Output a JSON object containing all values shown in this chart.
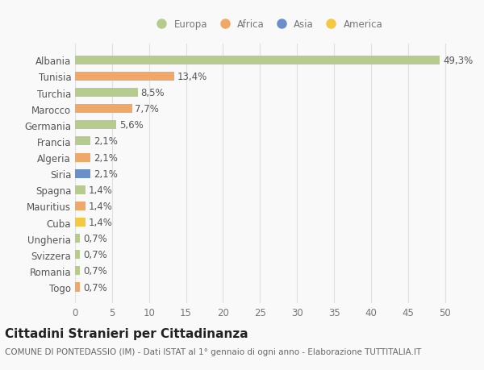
{
  "countries": [
    "Albania",
    "Tunisia",
    "Turchia",
    "Marocco",
    "Germania",
    "Francia",
    "Algeria",
    "Siria",
    "Spagna",
    "Mauritius",
    "Cuba",
    "Ungheria",
    "Svizzera",
    "Romania",
    "Togo"
  ],
  "values": [
    49.3,
    13.4,
    8.5,
    7.7,
    5.6,
    2.1,
    2.1,
    2.1,
    1.4,
    1.4,
    1.4,
    0.7,
    0.7,
    0.7,
    0.7
  ],
  "labels": [
    "49,3%",
    "13,4%",
    "8,5%",
    "7,7%",
    "5,6%",
    "2,1%",
    "2,1%",
    "2,1%",
    "1,4%",
    "1,4%",
    "1,4%",
    "0,7%",
    "0,7%",
    "0,7%",
    "0,7%"
  ],
  "colors": [
    "#b5cc8e",
    "#f0a868",
    "#b5cc8e",
    "#f0a868",
    "#b5cc8e",
    "#b5cc8e",
    "#f0a868",
    "#6a8fc8",
    "#b5cc8e",
    "#f0a868",
    "#f5c842",
    "#b5cc8e",
    "#b5cc8e",
    "#b5cc8e",
    "#f0a868"
  ],
  "legend_labels": [
    "Europa",
    "Africa",
    "Asia",
    "America"
  ],
  "legend_colors": [
    "#b5cc8e",
    "#f0a868",
    "#6a8fc8",
    "#f5c842"
  ],
  "title": "Cittadini Stranieri per Cittadinanza",
  "subtitle": "COMUNE DI PONTEDASSIO (IM) - Dati ISTAT al 1° gennaio di ogni anno - Elaborazione TUTTITALIA.IT",
  "xlim": [
    0,
    52
  ],
  "xticks": [
    0,
    5,
    10,
    15,
    20,
    25,
    30,
    35,
    40,
    45,
    50
  ],
  "background_color": "#f9f9f9",
  "grid_color": "#e0e0e0",
  "bar_height": 0.55,
  "label_fontsize": 8.5,
  "tick_fontsize": 8.5,
  "title_fontsize": 11,
  "subtitle_fontsize": 7.5
}
